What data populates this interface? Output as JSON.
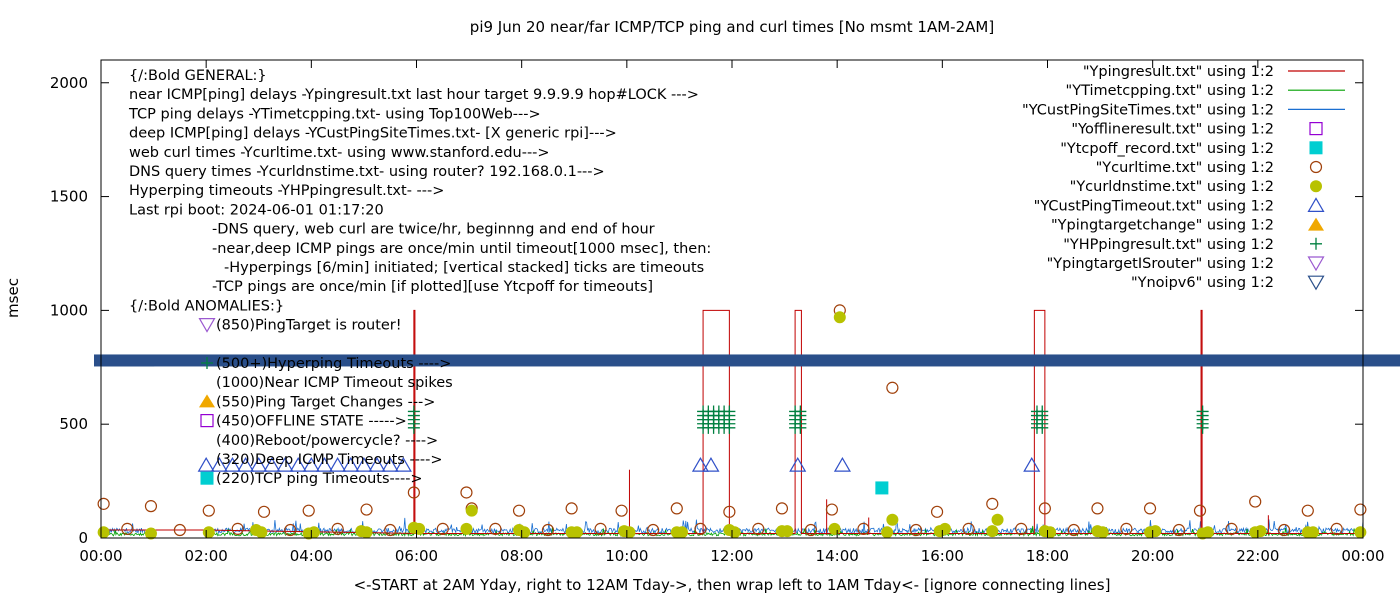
{
  "chart_data": {
    "type": "line",
    "title": "pi9 Jun 20  near/far ICMP/TCP ping and curl times [No msmt 1AM-2AM]",
    "xlabel": "<-START at 2AM Yday, right to 12AM Tday->, then wrap left to 1AM Tday<- [ignore connecting lines]",
    "ylabel": "msec",
    "xlim": [
      0,
      24
    ],
    "ylim": [
      0,
      2100
    ],
    "x_ticks": [
      "00:00",
      "02:00",
      "04:00",
      "06:00",
      "08:00",
      "10:00",
      "12:00",
      "14:00",
      "16:00",
      "18:00",
      "20:00",
      "22:00",
      "00:00"
    ],
    "y_ticks": [
      "0",
      "500",
      "1000",
      "1500",
      "2000"
    ],
    "y_tick_values": [
      0,
      500,
      1000,
      1500,
      2000
    ],
    "grid": false,
    "legend_position": "top-right",
    "legend": [
      {
        "label": "\"Ypingresult.txt\" using 1:2",
        "kind": "line",
        "color": "#c00000"
      },
      {
        "label": "\"YTimetcpping.txt\" using 1:2",
        "kind": "line",
        "color": "#00a000"
      },
      {
        "label": "\"YCustPingSiteTimes.txt\" using 1:2",
        "kind": "line",
        "color": "#1a6fd1"
      },
      {
        "label": "\"Yofflineresult.txt\" using 1:2",
        "kind": "open-square",
        "color": "#9400d3"
      },
      {
        "label": "\"Ytcpoff_record.txt\" using 1:2",
        "kind": "filled-square",
        "color": "#00ced1"
      },
      {
        "label": "\"Ycurltime.txt\" using 1:2",
        "kind": "open-circle",
        "color": "#a0400a"
      },
      {
        "label": "\"Ycurldnstime.txt\" using 1:2",
        "kind": "filled-circle",
        "color": "#b8c200"
      },
      {
        "label": "\"YCustPingTimeout.txt\" using 1:2",
        "kind": "open-triangle",
        "color": "#3050c8"
      },
      {
        "label": "\"Ypingtargetchange\" using 1:2",
        "kind": "filled-triangle",
        "color": "#f0a800"
      },
      {
        "label": "\"YHPpingresult.txt\" using 1:2",
        "kind": "plus",
        "color": "#008040"
      },
      {
        "label": "\"YpingtargetISrouter\" using 1:2",
        "kind": "open-triangle-down",
        "color": "#9b59d0"
      },
      {
        "label": "\"Ynoipv6\" using 1:2",
        "kind": "open-triangle-down",
        "color": "#2a4f8a"
      }
    ],
    "annotations": [
      "{/:Bold GENERAL:}",
      "near ICMP[ping] delays -Ypingresult.txt last hour target 9.9.9.9 hop#LOCK --->",
      "TCP ping delays -YTimetcpping.txt- using Top100Web--->",
      "deep ICMP[ping] delays -YCustPingSiteTimes.txt- [X generic rpi]--->",
      "web curl times -Ycurltime.txt- using www.stanford.edu--->",
      "DNS query times -Ycurldnstime.txt- using router? 192.168.0.1--->",
      "Hyperping timeouts -YHPpingresult.txt- --->",
      "Last rpi boot: 2024-06-01 01:17:20",
      "-DNS query, web curl are twice/hr, beginnng and end of hour",
      "-near,deep ICMP pings are once/min until timeout[1000 msec], then:",
      "-Hyperpings [6/min] initiated; [vertical stacked] ticks are timeouts",
      "-TCP pings are once/min [if plotted][use Ytcpoff for timeouts]",
      "{/:Bold ANOMALIES:}",
      "(850)PingTarget is router!",
      "(500+)Hyperping Timeouts ---->",
      "(1000)Near ICMP Timeout spikes",
      "(550)Ping Target Changes --->",
      "(450)OFFLINE STATE ----->",
      "(400)Reboot/powercycle? ---->",
      "(320)Deep ICMP Timeouts ---->",
      "(220)TCP ping Timeouts---->"
    ],
    "noipv6_band_y": 780,
    "near_icmp_timeouts": [
      [
        5.95,
        1000
      ],
      [
        11.45,
        1000
      ],
      [
        11.95,
        1000
      ],
      [
        13.2,
        1000
      ],
      [
        13.32,
        1000
      ],
      [
        17.75,
        1000
      ],
      [
        17.95,
        1000
      ],
      [
        20.92,
        1000
      ]
    ],
    "near_icmp_spikes": [
      [
        10.05,
        300
      ],
      [
        12.05,
        50
      ],
      [
        13.8,
        170
      ],
      [
        14.6,
        90
      ],
      [
        22.2,
        100
      ]
    ],
    "hyperping_timeouts_x": [
      5.95,
      11.45,
      11.55,
      11.65,
      11.75,
      11.85,
      11.95,
      13.2,
      13.3,
      17.8,
      17.9,
      20.95
    ],
    "hyperping_y": 520,
    "deep_icmp_timeouts": [
      [
        11.4,
        320
      ],
      [
        11.6,
        320
      ],
      [
        13.25,
        320
      ],
      [
        14.1,
        320
      ],
      [
        17.7,
        320
      ]
    ],
    "deep_icmp_timeouts_legend_row": [
      2.0,
      2.25,
      2.5,
      2.75,
      3.0,
      3.25,
      3.5,
      3.75,
      4.0,
      4.25,
      4.5,
      4.75,
      5.0,
      5.25,
      5.5,
      5.75
    ],
    "tcp_ping_timeouts": [
      [
        14.85,
        220
      ]
    ],
    "curl_times": [
      [
        0.05,
        150
      ],
      [
        0.95,
        140
      ],
      [
        2.05,
        120
      ],
      [
        3.1,
        115
      ],
      [
        3.95,
        120
      ],
      [
        5.05,
        125
      ],
      [
        5.95,
        200
      ],
      [
        6.95,
        200
      ],
      [
        7.05,
        130
      ],
      [
        7.95,
        120
      ],
      [
        8.95,
        130
      ],
      [
        9.9,
        120
      ],
      [
        10.95,
        130
      ],
      [
        11.95,
        115
      ],
      [
        12.95,
        130
      ],
      [
        13.9,
        125
      ],
      [
        14.05,
        1000
      ],
      [
        15.05,
        660
      ],
      [
        15.9,
        115
      ],
      [
        16.95,
        150
      ],
      [
        17.95,
        130
      ],
      [
        18.95,
        130
      ],
      [
        19.95,
        130
      ],
      [
        20.9,
        120
      ],
      [
        21.95,
        160
      ],
      [
        22.95,
        120
      ],
      [
        23.95,
        125
      ],
      [
        0.5,
        40
      ],
      [
        1.5,
        35
      ],
      [
        2.6,
        40
      ],
      [
        3.6,
        35
      ],
      [
        4.5,
        40
      ],
      [
        5.5,
        35
      ],
      [
        6.5,
        40
      ],
      [
        7.5,
        40
      ],
      [
        8.5,
        35
      ],
      [
        9.5,
        40
      ],
      [
        10.5,
        35
      ],
      [
        11.4,
        40
      ],
      [
        12.5,
        40
      ],
      [
        13.5,
        35
      ],
      [
        14.5,
        40
      ],
      [
        15.5,
        35
      ],
      [
        16.5,
        40
      ],
      [
        17.5,
        40
      ],
      [
        18.5,
        35
      ],
      [
        19.5,
        40
      ],
      [
        20.5,
        35
      ],
      [
        21.5,
        40
      ],
      [
        22.5,
        35
      ],
      [
        23.5,
        40
      ]
    ],
    "dns_times": [
      [
        0.05,
        25
      ],
      [
        0.95,
        20
      ],
      [
        2.05,
        25
      ],
      [
        2.95,
        35
      ],
      [
        3.05,
        25
      ],
      [
        3.95,
        20
      ],
      [
        4.05,
        25
      ],
      [
        4.95,
        30
      ],
      [
        5.05,
        25
      ],
      [
        5.95,
        45
      ],
      [
        6.05,
        40
      ],
      [
        6.95,
        40
      ],
      [
        7.05,
        120
      ],
      [
        7.95,
        35
      ],
      [
        8.05,
        25
      ],
      [
        8.95,
        25
      ],
      [
        9.05,
        25
      ],
      [
        9.95,
        30
      ],
      [
        10.05,
        25
      ],
      [
        10.95,
        25
      ],
      [
        11.05,
        25
      ],
      [
        11.95,
        35
      ],
      [
        12.05,
        25
      ],
      [
        12.95,
        30
      ],
      [
        13.05,
        30
      ],
      [
        13.95,
        40
      ],
      [
        14.05,
        970
      ],
      [
        14.95,
        25
      ],
      [
        15.05,
        80
      ],
      [
        15.95,
        30
      ],
      [
        16.05,
        40
      ],
      [
        16.95,
        30
      ],
      [
        17.05,
        80
      ],
      [
        17.95,
        30
      ],
      [
        18.05,
        25
      ],
      [
        18.95,
        30
      ],
      [
        19.05,
        25
      ],
      [
        19.95,
        25
      ],
      [
        20.05,
        30
      ],
      [
        20.95,
        20
      ],
      [
        21.05,
        25
      ],
      [
        21.95,
        25
      ],
      [
        22.05,
        30
      ],
      [
        22.95,
        25
      ],
      [
        23.05,
        25
      ],
      [
        23.95,
        25
      ]
    ]
  }
}
